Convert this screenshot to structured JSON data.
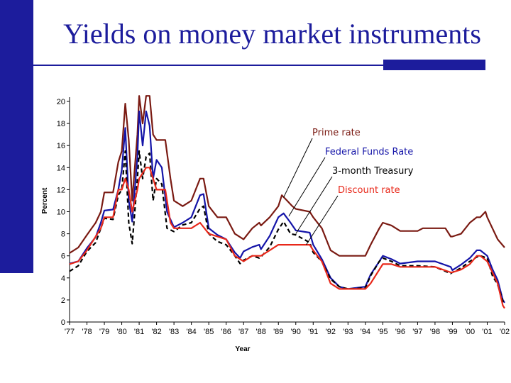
{
  "slide": {
    "title": "Yields on money market instruments",
    "colors": {
      "accent": "#1c1c9c"
    }
  },
  "chart_data": {
    "type": "line",
    "xlabel": "Year",
    "ylabel": "Percent",
    "xlim": [
      1977,
      2002
    ],
    "ylim": [
      0,
      20
    ],
    "x_tick_labels": [
      "'77",
      "'78",
      "'79",
      "'80",
      "'81",
      "'82",
      "'83",
      "'84",
      "'85",
      "'86",
      "'87",
      "'88",
      "'89",
      "'90",
      "'91",
      "'92",
      "'93",
      "'94",
      "'95",
      "'96",
      "'97",
      "'98",
      "'99",
      "'00",
      "'01",
      "'02"
    ],
    "y_ticks": [
      0,
      2,
      4,
      6,
      8,
      10,
      12,
      14,
      16,
      18,
      20
    ],
    "series": [
      {
        "name": "Prime rate",
        "color": "#7a1a12",
        "dash": "",
        "points": [
          [
            1977,
            6.25
          ],
          [
            1977.5,
            6.75
          ],
          [
            1978,
            7.9
          ],
          [
            1978.5,
            9
          ],
          [
            1978.8,
            10
          ],
          [
            1979,
            11.75
          ],
          [
            1979.5,
            11.75
          ],
          [
            1979.8,
            14.5
          ],
          [
            1980,
            15.5
          ],
          [
            1980.2,
            19.8
          ],
          [
            1980.4,
            16.5
          ],
          [
            1980.6,
            11
          ],
          [
            1980.9,
            17
          ],
          [
            1981.0,
            20.5
          ],
          [
            1981.2,
            18
          ],
          [
            1981.4,
            20.5
          ],
          [
            1981.6,
            20.5
          ],
          [
            1981.8,
            17
          ],
          [
            1982,
            16.5
          ],
          [
            1982.5,
            16.5
          ],
          [
            1982.8,
            13
          ],
          [
            1983,
            11
          ],
          [
            1983.5,
            10.5
          ],
          [
            1984,
            11
          ],
          [
            1984.5,
            13
          ],
          [
            1984.7,
            13
          ],
          [
            1985,
            10.5
          ],
          [
            1985.5,
            9.5
          ],
          [
            1986,
            9.5
          ],
          [
            1986.5,
            8
          ],
          [
            1987,
            7.5
          ],
          [
            1987.5,
            8.5
          ],
          [
            1987.9,
            9
          ],
          [
            1988,
            8.75
          ],
          [
            1988.5,
            9.5
          ],
          [
            1989,
            10.5
          ],
          [
            1989.2,
            11.5
          ],
          [
            1989.5,
            11
          ],
          [
            1989.8,
            10.5
          ],
          [
            1990,
            10.25
          ],
          [
            1990.8,
            10
          ],
          [
            1991,
            9.5
          ],
          [
            1991.5,
            8.5
          ],
          [
            1992,
            6.5
          ],
          [
            1992.5,
            6
          ],
          [
            1993,
            6
          ],
          [
            1994,
            6
          ],
          [
            1994.3,
            7
          ],
          [
            1994.8,
            8.5
          ],
          [
            1995,
            9
          ],
          [
            1995.5,
            8.75
          ],
          [
            1996,
            8.25
          ],
          [
            1997,
            8.25
          ],
          [
            1997.3,
            8.5
          ],
          [
            1998,
            8.5
          ],
          [
            1998.6,
            8.5
          ],
          [
            1998.9,
            7.75
          ],
          [
            1999,
            7.75
          ],
          [
            1999.5,
            8
          ],
          [
            2000,
            9
          ],
          [
            2000.4,
            9.5
          ],
          [
            2000.6,
            9.5
          ],
          [
            2000.9,
            10
          ],
          [
            2001,
            9.5
          ],
          [
            2001.3,
            8.5
          ],
          [
            2001.6,
            7.5
          ],
          [
            2002,
            6.75
          ]
        ]
      },
      {
        "name": "Federal Funds Rate",
        "color": "#1414a8",
        "dash": "",
        "points": [
          [
            1977,
            5.3
          ],
          [
            1977.5,
            5.5
          ],
          [
            1978,
            6.7
          ],
          [
            1978.5,
            7.7
          ],
          [
            1978.8,
            9
          ],
          [
            1979,
            10.1
          ],
          [
            1979.5,
            10.2
          ],
          [
            1979.8,
            12
          ],
          [
            1980,
            13.8
          ],
          [
            1980.2,
            17.6
          ],
          [
            1980.4,
            11
          ],
          [
            1980.6,
            9.1
          ],
          [
            1980.9,
            15
          ],
          [
            1981.0,
            19.1
          ],
          [
            1981.2,
            16
          ],
          [
            1981.4,
            19.1
          ],
          [
            1981.6,
            17.8
          ],
          [
            1981.8,
            13
          ],
          [
            1982,
            14.7
          ],
          [
            1982.3,
            14
          ],
          [
            1982.6,
            10
          ],
          [
            1983,
            8.6
          ],
          [
            1983.5,
            9
          ],
          [
            1984,
            9.5
          ],
          [
            1984.5,
            11.5
          ],
          [
            1984.7,
            11.6
          ],
          [
            1985,
            8.5
          ],
          [
            1985.5,
            7.9
          ],
          [
            1986,
            7.5
          ],
          [
            1986.5,
            6.3
          ],
          [
            1986.8,
            5.8
          ],
          [
            1987,
            6.4
          ],
          [
            1987.5,
            6.8
          ],
          [
            1987.9,
            7
          ],
          [
            1988,
            6.6
          ],
          [
            1988.5,
            7.8
          ],
          [
            1989,
            9.5
          ],
          [
            1989.3,
            9.85
          ],
          [
            1989.7,
            9
          ],
          [
            1990,
            8.3
          ],
          [
            1990.8,
            8.1
          ],
          [
            1991,
            7
          ],
          [
            1991.5,
            5.7
          ],
          [
            1992,
            4
          ],
          [
            1992.5,
            3.2
          ],
          [
            1993,
            3
          ],
          [
            1994,
            3.2
          ],
          [
            1994.3,
            4.3
          ],
          [
            1994.8,
            5.5
          ],
          [
            1995,
            6
          ],
          [
            1995.5,
            5.7
          ],
          [
            1996,
            5.3
          ],
          [
            1997,
            5.5
          ],
          [
            1998,
            5.5
          ],
          [
            1998.9,
            5
          ],
          [
            1999,
            4.7
          ],
          [
            1999.5,
            5.2
          ],
          [
            2000,
            5.8
          ],
          [
            2000.4,
            6.5
          ],
          [
            2000.6,
            6.5
          ],
          [
            2001,
            6
          ],
          [
            2001.3,
            4.8
          ],
          [
            2001.6,
            3.8
          ],
          [
            2001.9,
            2
          ],
          [
            2002,
            1.75
          ]
        ]
      },
      {
        "name": "3-month Treasury",
        "color": "#000000",
        "dash": "6,4",
        "points": [
          [
            1977,
            4.6
          ],
          [
            1977.5,
            5.1
          ],
          [
            1978,
            6.4
          ],
          [
            1978.5,
            7.2
          ],
          [
            1978.8,
            8.5
          ],
          [
            1979,
            9.4
          ],
          [
            1979.5,
            9.3
          ],
          [
            1979.8,
            11.5
          ],
          [
            1980,
            12
          ],
          [
            1980.2,
            15.5
          ],
          [
            1980.4,
            9
          ],
          [
            1980.6,
            7.1
          ],
          [
            1980.9,
            13
          ],
          [
            1981.0,
            15.5
          ],
          [
            1981.2,
            13
          ],
          [
            1981.4,
            15
          ],
          [
            1981.6,
            15.3
          ],
          [
            1981.8,
            11
          ],
          [
            1982,
            13
          ],
          [
            1982.3,
            12.5
          ],
          [
            1982.6,
            8.5
          ],
          [
            1983,
            8.2
          ],
          [
            1983.5,
            8.8
          ],
          [
            1984,
            9
          ],
          [
            1984.5,
            10.3
          ],
          [
            1984.7,
            10.5
          ],
          [
            1985,
            8
          ],
          [
            1985.5,
            7.3
          ],
          [
            1986,
            7
          ],
          [
            1986.5,
            6
          ],
          [
            1986.8,
            5.3
          ],
          [
            1987,
            5.6
          ],
          [
            1987.5,
            6
          ],
          [
            1987.9,
            5.8
          ],
          [
            1988,
            5.9
          ],
          [
            1988.5,
            6.8
          ],
          [
            1989,
            8.4
          ],
          [
            1989.3,
            9.1
          ],
          [
            1989.7,
            8
          ],
          [
            1990,
            7.9
          ],
          [
            1990.8,
            7.2
          ],
          [
            1991,
            6.3
          ],
          [
            1991.5,
            5.5
          ],
          [
            1992,
            3.9
          ],
          [
            1992.5,
            3.2
          ],
          [
            1993,
            3
          ],
          [
            1994,
            3.1
          ],
          [
            1994.3,
            4.2
          ],
          [
            1994.8,
            5.5
          ],
          [
            1995,
            5.8
          ],
          [
            1995.5,
            5.5
          ],
          [
            1996,
            5.1
          ],
          [
            1997,
            5.1
          ],
          [
            1998,
            5
          ],
          [
            1998.9,
            4.4
          ],
          [
            1999,
            4.5
          ],
          [
            1999.5,
            4.9
          ],
          [
            2000,
            5.5
          ],
          [
            2000.4,
            5.9
          ],
          [
            2000.6,
            6
          ],
          [
            2001,
            5.8
          ],
          [
            2001.3,
            4.2
          ],
          [
            2001.6,
            3.4
          ],
          [
            2001.9,
            1.9
          ],
          [
            2002,
            1.7
          ]
        ]
      },
      {
        "name": "Discount rate",
        "color": "#e8281a",
        "dash": "",
        "points": [
          [
            1977,
            5.25
          ],
          [
            1977.5,
            5.5
          ],
          [
            1978,
            6.5
          ],
          [
            1978.5,
            7.75
          ],
          [
            1978.8,
            8.5
          ],
          [
            1979,
            9.5
          ],
          [
            1979.5,
            9.5
          ],
          [
            1979.8,
            12
          ],
          [
            1980,
            12
          ],
          [
            1980.2,
            13
          ],
          [
            1980.4,
            12
          ],
          [
            1980.6,
            10
          ],
          [
            1980.9,
            12
          ],
          [
            1981.0,
            13
          ],
          [
            1981.4,
            14
          ],
          [
            1981.6,
            14
          ],
          [
            1981.8,
            13
          ],
          [
            1982,
            12
          ],
          [
            1982.5,
            12
          ],
          [
            1982.8,
            9
          ],
          [
            1983,
            8.5
          ],
          [
            1984,
            8.5
          ],
          [
            1984.5,
            9
          ],
          [
            1985,
            8
          ],
          [
            1986,
            7.5
          ],
          [
            1986.5,
            6
          ],
          [
            1987,
            5.5
          ],
          [
            1987.5,
            6
          ],
          [
            1988,
            6
          ],
          [
            1988.5,
            6.5
          ],
          [
            1989,
            7
          ],
          [
            1990,
            7
          ],
          [
            1990.8,
            7
          ],
          [
            1991,
            6.5
          ],
          [
            1991.5,
            5.5
          ],
          [
            1992,
            3.5
          ],
          [
            1992.5,
            3
          ],
          [
            1993,
            3
          ],
          [
            1994,
            3
          ],
          [
            1994.3,
            3.5
          ],
          [
            1994.8,
            4.75
          ],
          [
            1995,
            5.25
          ],
          [
            1995.5,
            5.25
          ],
          [
            1996,
            5
          ],
          [
            1997,
            5
          ],
          [
            1998,
            5
          ],
          [
            1998.9,
            4.5
          ],
          [
            1999,
            4.5
          ],
          [
            1999.5,
            4.75
          ],
          [
            2000,
            5.25
          ],
          [
            2000.4,
            6
          ],
          [
            2000.6,
            6
          ],
          [
            2001,
            5.5
          ],
          [
            2001.3,
            4.5
          ],
          [
            2001.6,
            3.5
          ],
          [
            2001.9,
            1.5
          ],
          [
            2002,
            1.25
          ]
        ]
      }
    ],
    "annotations": [
      {
        "label": "Prime rate",
        "color": "#7a1a12",
        "target_x": 1989.3,
        "target_y": 11.3
      },
      {
        "label": "Federal Funds Rate",
        "color": "#1414a8",
        "target_x": 1989.6,
        "target_y": 9.6
      },
      {
        "label": "3-month Treasury",
        "color": "#000000",
        "target_x": 1990.0,
        "target_y": 8.0
      },
      {
        "label": "Discount rate",
        "color": "#e8281a",
        "target_x": 1990.6,
        "target_y": 7.0
      }
    ]
  }
}
